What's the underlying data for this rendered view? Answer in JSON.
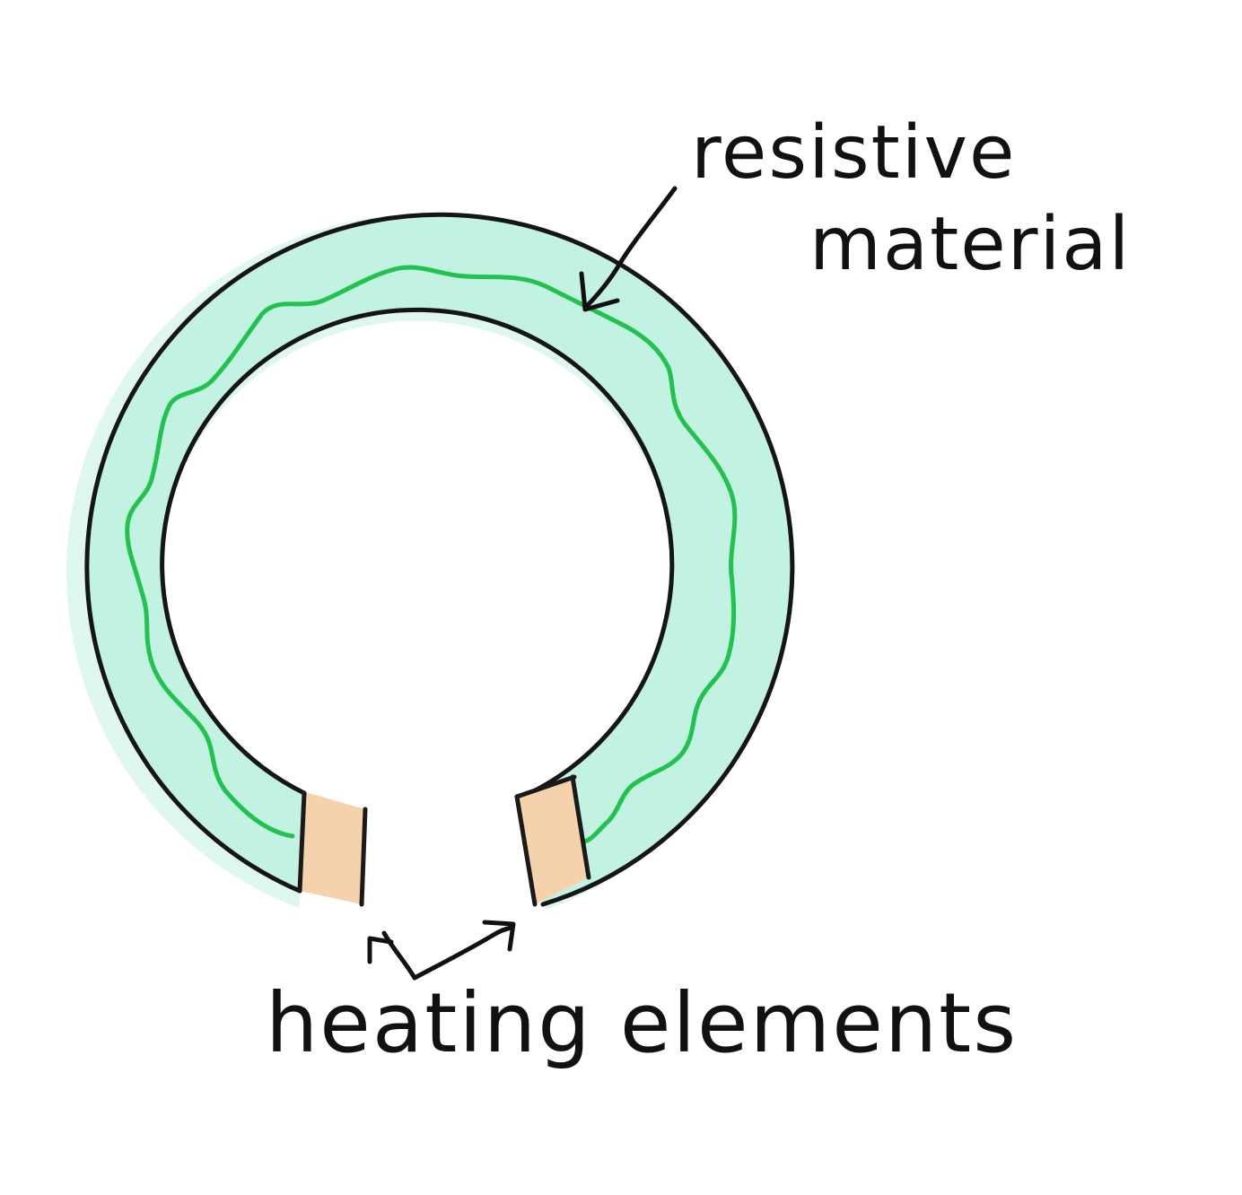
{
  "labels": {
    "resistive_line1": "resistive",
    "resistive_line2": "material",
    "heating": "heating elements"
  },
  "colors": {
    "ring_fill": "#c2f2e2",
    "ring_outline": "#151515",
    "wire": "#22c24e",
    "heater_fill": "#f5d2ac",
    "heater_outline": "#1a1a1a",
    "ink": "#111111",
    "background": "#ffffff"
  },
  "icons": {
    "resistive_pointer": "arrow",
    "heating_pointer": "branched-arrow"
  }
}
